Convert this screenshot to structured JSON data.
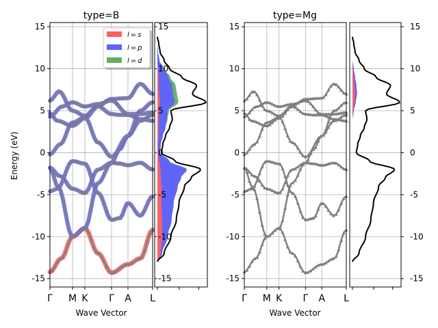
{
  "figure": {
    "ylabel": "Energy (eV)",
    "xlabel": "Wave Vector",
    "colors": {
      "s": "#ff6060",
      "p": "#6060ff",
      "d": "#60b060",
      "band": "#808080",
      "dos": "#000000",
      "grid": "#b0b0b0"
    }
  },
  "chart_data": [
    {
      "type": "line",
      "title": "type=B",
      "ylabel": "Energy (eV)",
      "xlabel": "Wave Vector",
      "ylim": [
        -16,
        15.5
      ],
      "yticks": [
        -15,
        -10,
        -5,
        0,
        5,
        10,
        15
      ],
      "kpoints": [
        "Γ",
        "M",
        "K",
        "Γ",
        "A",
        "L"
      ],
      "kpoint_positions": [
        0,
        0.22,
        0.34,
        0.6,
        0.76,
        1.0
      ],
      "grid": true,
      "legend": {
        "placement": "top-right",
        "entries": [
          "l=s",
          "l=p",
          "l=d"
        ]
      },
      "bands": [
        {
          "name": "band1",
          "x": [
            0,
            0.11,
            0.22,
            0.34,
            0.47,
            0.6,
            0.76,
            0.88,
            1.0
          ],
          "y": [
            -14.2,
            -12.6,
            -10.0,
            -9.0,
            -12.0,
            -14.3,
            -13.3,
            -12.6,
            -9.2
          ]
        },
        {
          "name": "band2",
          "x": [
            0,
            0.08,
            0.22,
            0.34,
            0.47,
            0.6,
            0.68,
            0.76,
            0.88,
            1.0
          ],
          "y": [
            -1.8,
            -4.1,
            -10.0,
            -9.0,
            -3.6,
            -1.2,
            -1.3,
            -1.5,
            -1.2,
            -2.0
          ]
        },
        {
          "name": "band3",
          "x": [
            0,
            0.1,
            0.22,
            0.34,
            0.47,
            0.6,
            0.68,
            0.76,
            0.88,
            1.0
          ],
          "y": [
            -1.8,
            -2.8,
            -4.3,
            -4.8,
            -2.0,
            -1.2,
            0.4,
            2.0,
            3.8,
            4.5
          ]
        },
        {
          "name": "band4",
          "x": [
            0,
            0.07,
            0.22,
            0.34,
            0.47,
            0.6,
            0.68,
            0.76,
            0.88,
            1.0
          ],
          "y": [
            -4.6,
            -4.3,
            -1.0,
            -1.3,
            -4.8,
            -8.0,
            -7.8,
            -6.0,
            -7.5,
            -5.2
          ]
        },
        {
          "name": "band5",
          "x": [
            0,
            0.09,
            0.22,
            0.34,
            0.47,
            0.6,
            0.76,
            0.88,
            1.0
          ],
          "y": [
            6.2,
            7.3,
            5.0,
            4.4,
            5.6,
            6.4,
            6.5,
            8.2,
            7.0
          ]
        },
        {
          "name": "band6",
          "x": [
            0,
            0.07,
            0.22,
            0.34,
            0.47,
            0.6,
            0.68,
            0.76,
            0.88,
            1.0
          ],
          "y": [
            4.7,
            3.8,
            3.2,
            4.1,
            5.5,
            4.6,
            4.5,
            4.5,
            4.0,
            3.8
          ]
        },
        {
          "name": "band7",
          "x": [
            0,
            0.1,
            0.22,
            0.34,
            0.47,
            0.6,
            0.76,
            0.88,
            1.0
          ],
          "y": [
            -0.2,
            1.0,
            3.6,
            4.2,
            1.2,
            -0.5,
            2.0,
            5.0,
            6.0
          ]
        },
        {
          "name": "band8",
          "x": [
            0,
            0.12,
            0.22,
            0.34,
            0.47,
            0.6,
            0.76,
            0.88,
            1.0
          ],
          "y": [
            4.3,
            5.5,
            6.0,
            5.5,
            5.8,
            6.2,
            4.6,
            4.6,
            4.8
          ]
        }
      ],
      "dos": {
        "energy": [
          -13.0,
          -12.0,
          -10.0,
          -8.0,
          -6.0,
          -4.0,
          -3.0,
          -2.0,
          -1.0,
          0.0,
          1.0,
          2.0,
          3.0,
          4.0,
          5.0,
          6.0,
          7.0,
          8.0,
          9.0,
          10.0,
          11.0,
          12.0,
          13.0,
          13.8
        ],
        "total": [
          0.0,
          0.5,
          1.0,
          1.4,
          1.6,
          2.0,
          2.5,
          3.2,
          1.3,
          0.3,
          0.4,
          0.6,
          0.9,
          1.1,
          1.0,
          3.6,
          2.6,
          2.9,
          1.8,
          0.9,
          0.5,
          0.2,
          0.1,
          0.0
        ],
        "s": [
          0.0,
          0.25,
          0.35,
          0.35,
          0.3,
          0.3,
          0.25,
          0.25,
          0.15,
          0.05,
          0.05,
          0.1,
          0.1,
          0.1,
          0.15,
          0.2,
          0.15,
          0.1,
          0.1,
          0.05,
          0.0,
          0.0,
          0.0,
          0.0
        ],
        "p": [
          0.0,
          0.1,
          0.4,
          0.7,
          0.9,
          1.2,
          1.5,
          1.9,
          0.7,
          0.15,
          0.2,
          0.3,
          0.5,
          0.6,
          0.6,
          1.1,
          1.0,
          1.0,
          0.7,
          0.4,
          0.15,
          0.05,
          0.0,
          0.0
        ],
        "d": [
          0.0,
          0.0,
          0.0,
          0.0,
          0.0,
          0.0,
          0.0,
          0.05,
          0.05,
          0.0,
          0.0,
          0.0,
          0.0,
          0.05,
          0.1,
          0.25,
          0.3,
          0.25,
          0.15,
          0.05,
          0.0,
          0.0,
          0.0,
          0.0
        ]
      }
    },
    {
      "type": "line",
      "title": "type=Mg",
      "ylabel": "",
      "xlabel": "Wave Vector",
      "ylim": [
        -16,
        15.5
      ],
      "yticks": [
        -15,
        -10,
        -5,
        0,
        5,
        10,
        15
      ],
      "kpoints": [
        "Γ",
        "M",
        "K",
        "Γ",
        "A",
        "L"
      ],
      "kpoint_positions": [
        0,
        0.22,
        0.34,
        0.6,
        0.76,
        1.0
      ],
      "grid": true,
      "dos": {
        "energy": [
          -13.0,
          -12.0,
          -10.0,
          -8.0,
          -6.0,
          -4.0,
          -3.0,
          -2.0,
          -1.0,
          0.0,
          1.0,
          2.0,
          3.0,
          4.0,
          5.0,
          6.0,
          7.0,
          8.0,
          9.0,
          10.0,
          11.0,
          12.0,
          13.0,
          13.8
        ],
        "total": [
          0.0,
          0.5,
          1.0,
          1.4,
          1.6,
          2.0,
          2.5,
          3.2,
          1.3,
          0.3,
          0.4,
          0.6,
          0.9,
          1.1,
          1.0,
          3.6,
          2.6,
          2.9,
          1.8,
          0.9,
          0.5,
          0.2,
          0.1,
          0.0
        ],
        "s": [
          0,
          0,
          0,
          0,
          0,
          0,
          0,
          0,
          0,
          0,
          0,
          0,
          0,
          0,
          0.05,
          0.15,
          0.2,
          0.15,
          0.1,
          0.05,
          0,
          0,
          0,
          0
        ],
        "p": [
          0,
          0,
          0,
          0,
          0,
          0,
          0,
          0,
          0,
          0,
          0,
          0,
          0,
          0,
          0.05,
          0.1,
          0.15,
          0.15,
          0.1,
          0.05,
          0,
          0,
          0,
          0
        ],
        "d": [
          0,
          0,
          0,
          0,
          0,
          0,
          0,
          0,
          0,
          0,
          0,
          0,
          0,
          0,
          0,
          0,
          0,
          0,
          0,
          0,
          0,
          0,
          0,
          0
        ]
      }
    }
  ]
}
